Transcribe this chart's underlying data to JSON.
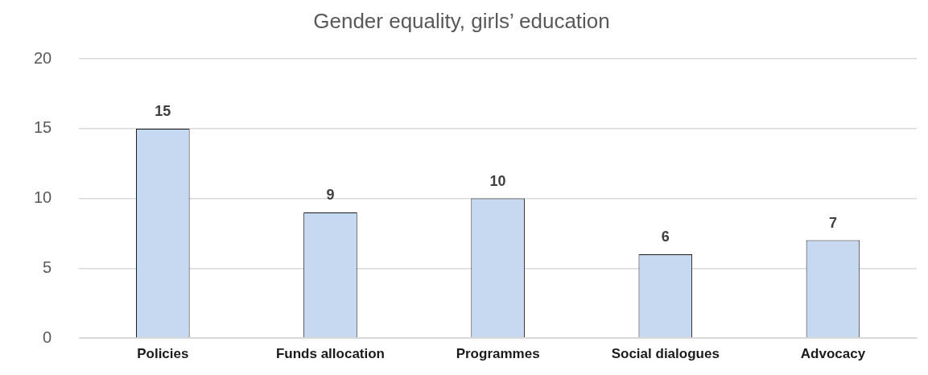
{
  "chart_data": {
    "type": "bar",
    "title": "Gender equality, girls’ education",
    "categories": [
      "Policies",
      "Funds allocation",
      "Programmes",
      "Social dialogues",
      "Advocacy"
    ],
    "values": [
      15,
      9,
      10,
      6,
      7
    ],
    "color": "#c6d9f1",
    "ylim": [
      0,
      20
    ],
    "yticks": [
      0,
      5,
      10,
      15,
      20
    ],
    "grid": "y",
    "data_labels": true
  }
}
